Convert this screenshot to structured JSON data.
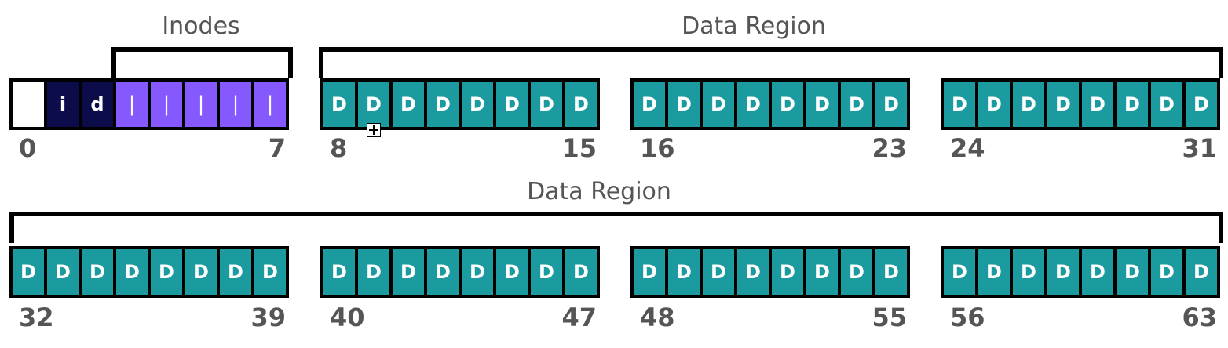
{
  "labels": {
    "inodes": "Inodes",
    "data_region_top": "Data Region",
    "data_region_bottom": "Data Region"
  },
  "rows": [
    {
      "groups": [
        {
          "start": "0",
          "end": "7",
          "blocks": [
            {
              "kind": "superblock",
              "text": ""
            },
            {
              "kind": "imap",
              "text": "i"
            },
            {
              "kind": "dmap",
              "text": "d"
            },
            {
              "kind": "inode",
              "text": "|"
            },
            {
              "kind": "inode",
              "text": "|"
            },
            {
              "kind": "inode",
              "text": "|"
            },
            {
              "kind": "inode",
              "text": "|"
            },
            {
              "kind": "inode",
              "text": "|"
            }
          ]
        },
        {
          "start": "8",
          "end": "15",
          "blocks": [
            {
              "kind": "data",
              "text": "D"
            },
            {
              "kind": "data",
              "text": "D"
            },
            {
              "kind": "data",
              "text": "D"
            },
            {
              "kind": "data",
              "text": "D"
            },
            {
              "kind": "data",
              "text": "D"
            },
            {
              "kind": "data",
              "text": "D"
            },
            {
              "kind": "data",
              "text": "D"
            },
            {
              "kind": "data",
              "text": "D"
            }
          ]
        },
        {
          "start": "16",
          "end": "23",
          "blocks": [
            {
              "kind": "data",
              "text": "D"
            },
            {
              "kind": "data",
              "text": "D"
            },
            {
              "kind": "data",
              "text": "D"
            },
            {
              "kind": "data",
              "text": "D"
            },
            {
              "kind": "data",
              "text": "D"
            },
            {
              "kind": "data",
              "text": "D"
            },
            {
              "kind": "data",
              "text": "D"
            },
            {
              "kind": "data",
              "text": "D"
            }
          ]
        },
        {
          "start": "24",
          "end": "31",
          "blocks": [
            {
              "kind": "data",
              "text": "D"
            },
            {
              "kind": "data",
              "text": "D"
            },
            {
              "kind": "data",
              "text": "D"
            },
            {
              "kind": "data",
              "text": "D"
            },
            {
              "kind": "data",
              "text": "D"
            },
            {
              "kind": "data",
              "text": "D"
            },
            {
              "kind": "data",
              "text": "D"
            },
            {
              "kind": "data",
              "text": "D"
            }
          ]
        }
      ]
    },
    {
      "groups": [
        {
          "start": "32",
          "end": "39",
          "blocks": [
            {
              "kind": "data",
              "text": "D"
            },
            {
              "kind": "data",
              "text": "D"
            },
            {
              "kind": "data",
              "text": "D"
            },
            {
              "kind": "data",
              "text": "D"
            },
            {
              "kind": "data",
              "text": "D"
            },
            {
              "kind": "data",
              "text": "D"
            },
            {
              "kind": "data",
              "text": "D"
            },
            {
              "kind": "data",
              "text": "D"
            }
          ]
        },
        {
          "start": "40",
          "end": "47",
          "blocks": [
            {
              "kind": "data",
              "text": "D"
            },
            {
              "kind": "data",
              "text": "D"
            },
            {
              "kind": "data",
              "text": "D"
            },
            {
              "kind": "data",
              "text": "D"
            },
            {
              "kind": "data",
              "text": "D"
            },
            {
              "kind": "data",
              "text": "D"
            },
            {
              "kind": "data",
              "text": "D"
            },
            {
              "kind": "data",
              "text": "D"
            }
          ]
        },
        {
          "start": "48",
          "end": "55",
          "blocks": [
            {
              "kind": "data",
              "text": "D"
            },
            {
              "kind": "data",
              "text": "D"
            },
            {
              "kind": "data",
              "text": "D"
            },
            {
              "kind": "data",
              "text": "D"
            },
            {
              "kind": "data",
              "text": "D"
            },
            {
              "kind": "data",
              "text": "D"
            },
            {
              "kind": "data",
              "text": "D"
            },
            {
              "kind": "data",
              "text": "D"
            }
          ]
        },
        {
          "start": "56",
          "end": "63",
          "blocks": [
            {
              "kind": "data",
              "text": "D"
            },
            {
              "kind": "data",
              "text": "D"
            },
            {
              "kind": "data",
              "text": "D"
            },
            {
              "kind": "data",
              "text": "D"
            },
            {
              "kind": "data",
              "text": "D"
            },
            {
              "kind": "data",
              "text": "D"
            },
            {
              "kind": "data",
              "text": "D"
            },
            {
              "kind": "data",
              "text": "D"
            }
          ]
        }
      ]
    }
  ],
  "colors": {
    "superblock": "#ffffff",
    "bitmap": "#0c0c4a",
    "inode": "#8659ff",
    "data": "#1b9aa0",
    "label": "#555555"
  },
  "icons": {
    "cursor": "move-cursor-icon"
  }
}
